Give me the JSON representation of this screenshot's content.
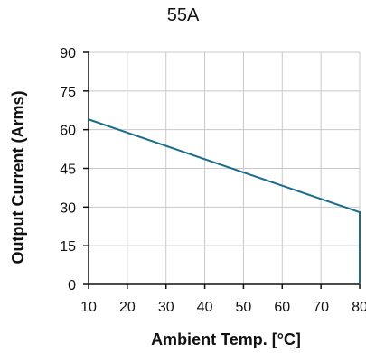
{
  "chart_data": {
    "type": "line",
    "title": "55A",
    "xlabel": "Ambient Temp. [°C]",
    "ylabel": "Output Current (Arms)",
    "xlim": [
      10,
      80
    ],
    "ylim": [
      0,
      90
    ],
    "xticks": [
      10,
      20,
      30,
      40,
      50,
      60,
      70,
      80
    ],
    "yticks": [
      0,
      15,
      30,
      45,
      60,
      75,
      90
    ],
    "grid": true,
    "series": [
      {
        "points": [
          [
            10,
            64
          ],
          [
            80,
            28
          ],
          [
            80,
            0
          ]
        ],
        "color": "#1a6c8c"
      }
    ]
  }
}
